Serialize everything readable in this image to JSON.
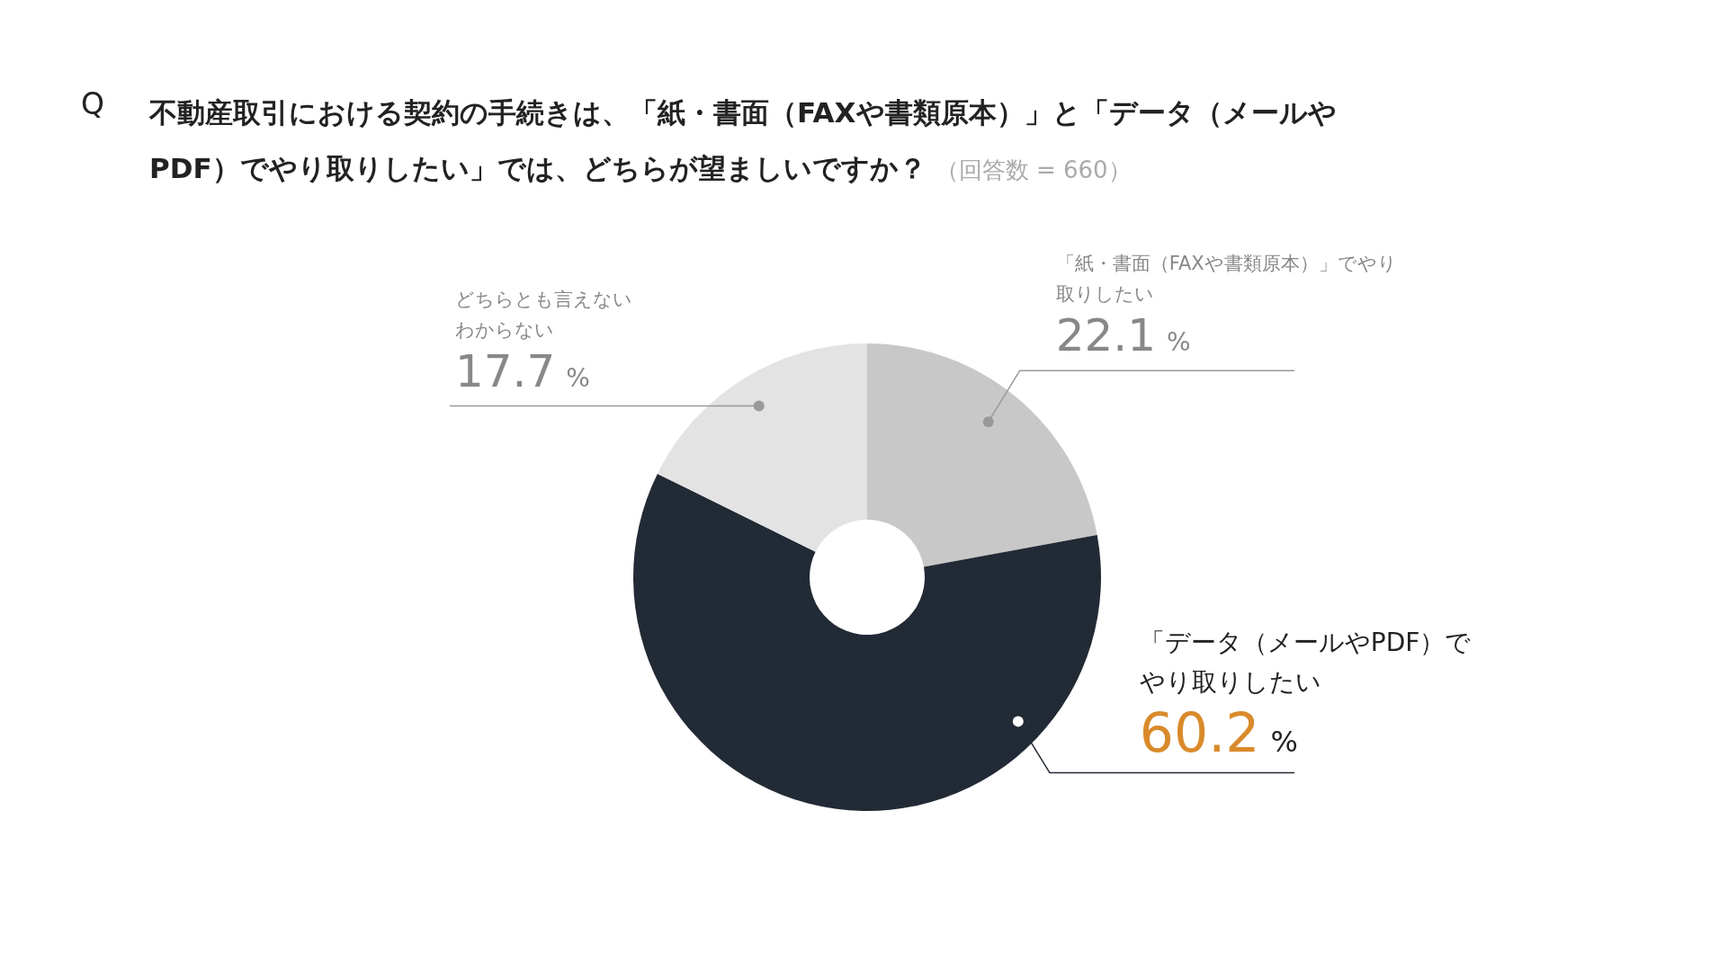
{
  "chart_data": {
    "type": "donut",
    "title": "不動産取引における契約の手続きは、「紙・書面（FAXや書類原本）」と「データ（メールやPDF）でやり取りしたい」では、どちらが望ましいですか？",
    "subtitle": "（回答数 = 660）",
    "annotations": [
      "Q"
    ],
    "categories": [
      "「紙・書面（FAXや書類原本）」でやり取りしたい",
      "「データ（メールやPDF）でやり取りしたい",
      "どちらとも言えないわからない"
    ],
    "values": [
      22.1,
      60.2,
      17.7
    ],
    "value_labels": [
      "22.1 %",
      "60.2 %",
      "17.7 %"
    ],
    "colors": [
      "#c8c8c8",
      "#222a35",
      "#e3e3e3"
    ]
  }
}
